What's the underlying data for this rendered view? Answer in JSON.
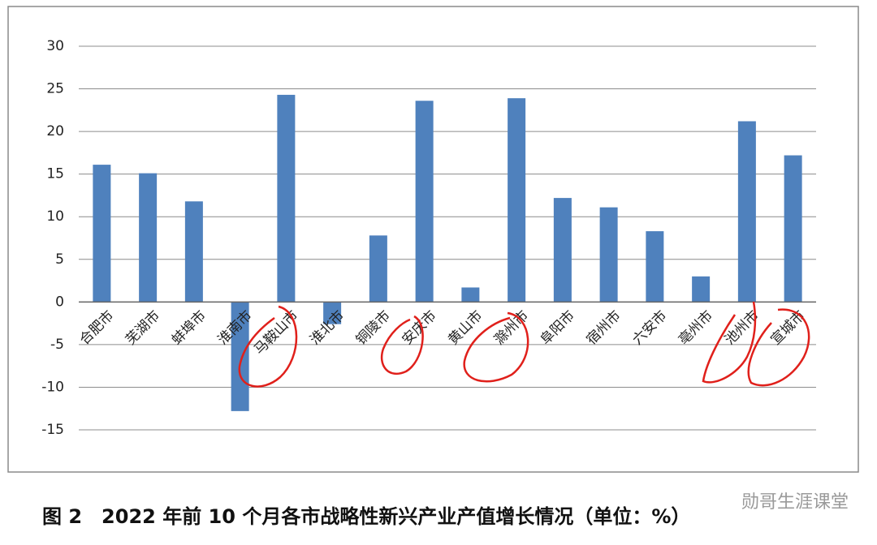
{
  "chart_data": {
    "type": "bar",
    "caption": "图 2　2022 年前 10 个月各市战略性新兴产业产值增长情况（单位：%）",
    "watermark": "勋哥生涯课堂",
    "categories": [
      "合肥市",
      "芜湖市",
      "蚌埠市",
      "淮南市",
      "马鞍山市",
      "淮北市",
      "铜陵市",
      "安庆市",
      "黄山市",
      "滁州市",
      "阜阳市",
      "宿州市",
      "六安市",
      "亳州市",
      "池州市",
      "宣城市"
    ],
    "values": [
      16.1,
      15.1,
      11.8,
      -12.8,
      24.3,
      -2.6,
      7.8,
      23.6,
      1.7,
      23.9,
      12.2,
      11.1,
      8.3,
      3.0,
      21.2,
      17.2
    ],
    "color": "#4f81bd",
    "ylim": [
      -15,
      30
    ],
    "yticks": [
      -15,
      -10,
      -5,
      0,
      5,
      10,
      15,
      20,
      25,
      30
    ],
    "grid": true
  }
}
